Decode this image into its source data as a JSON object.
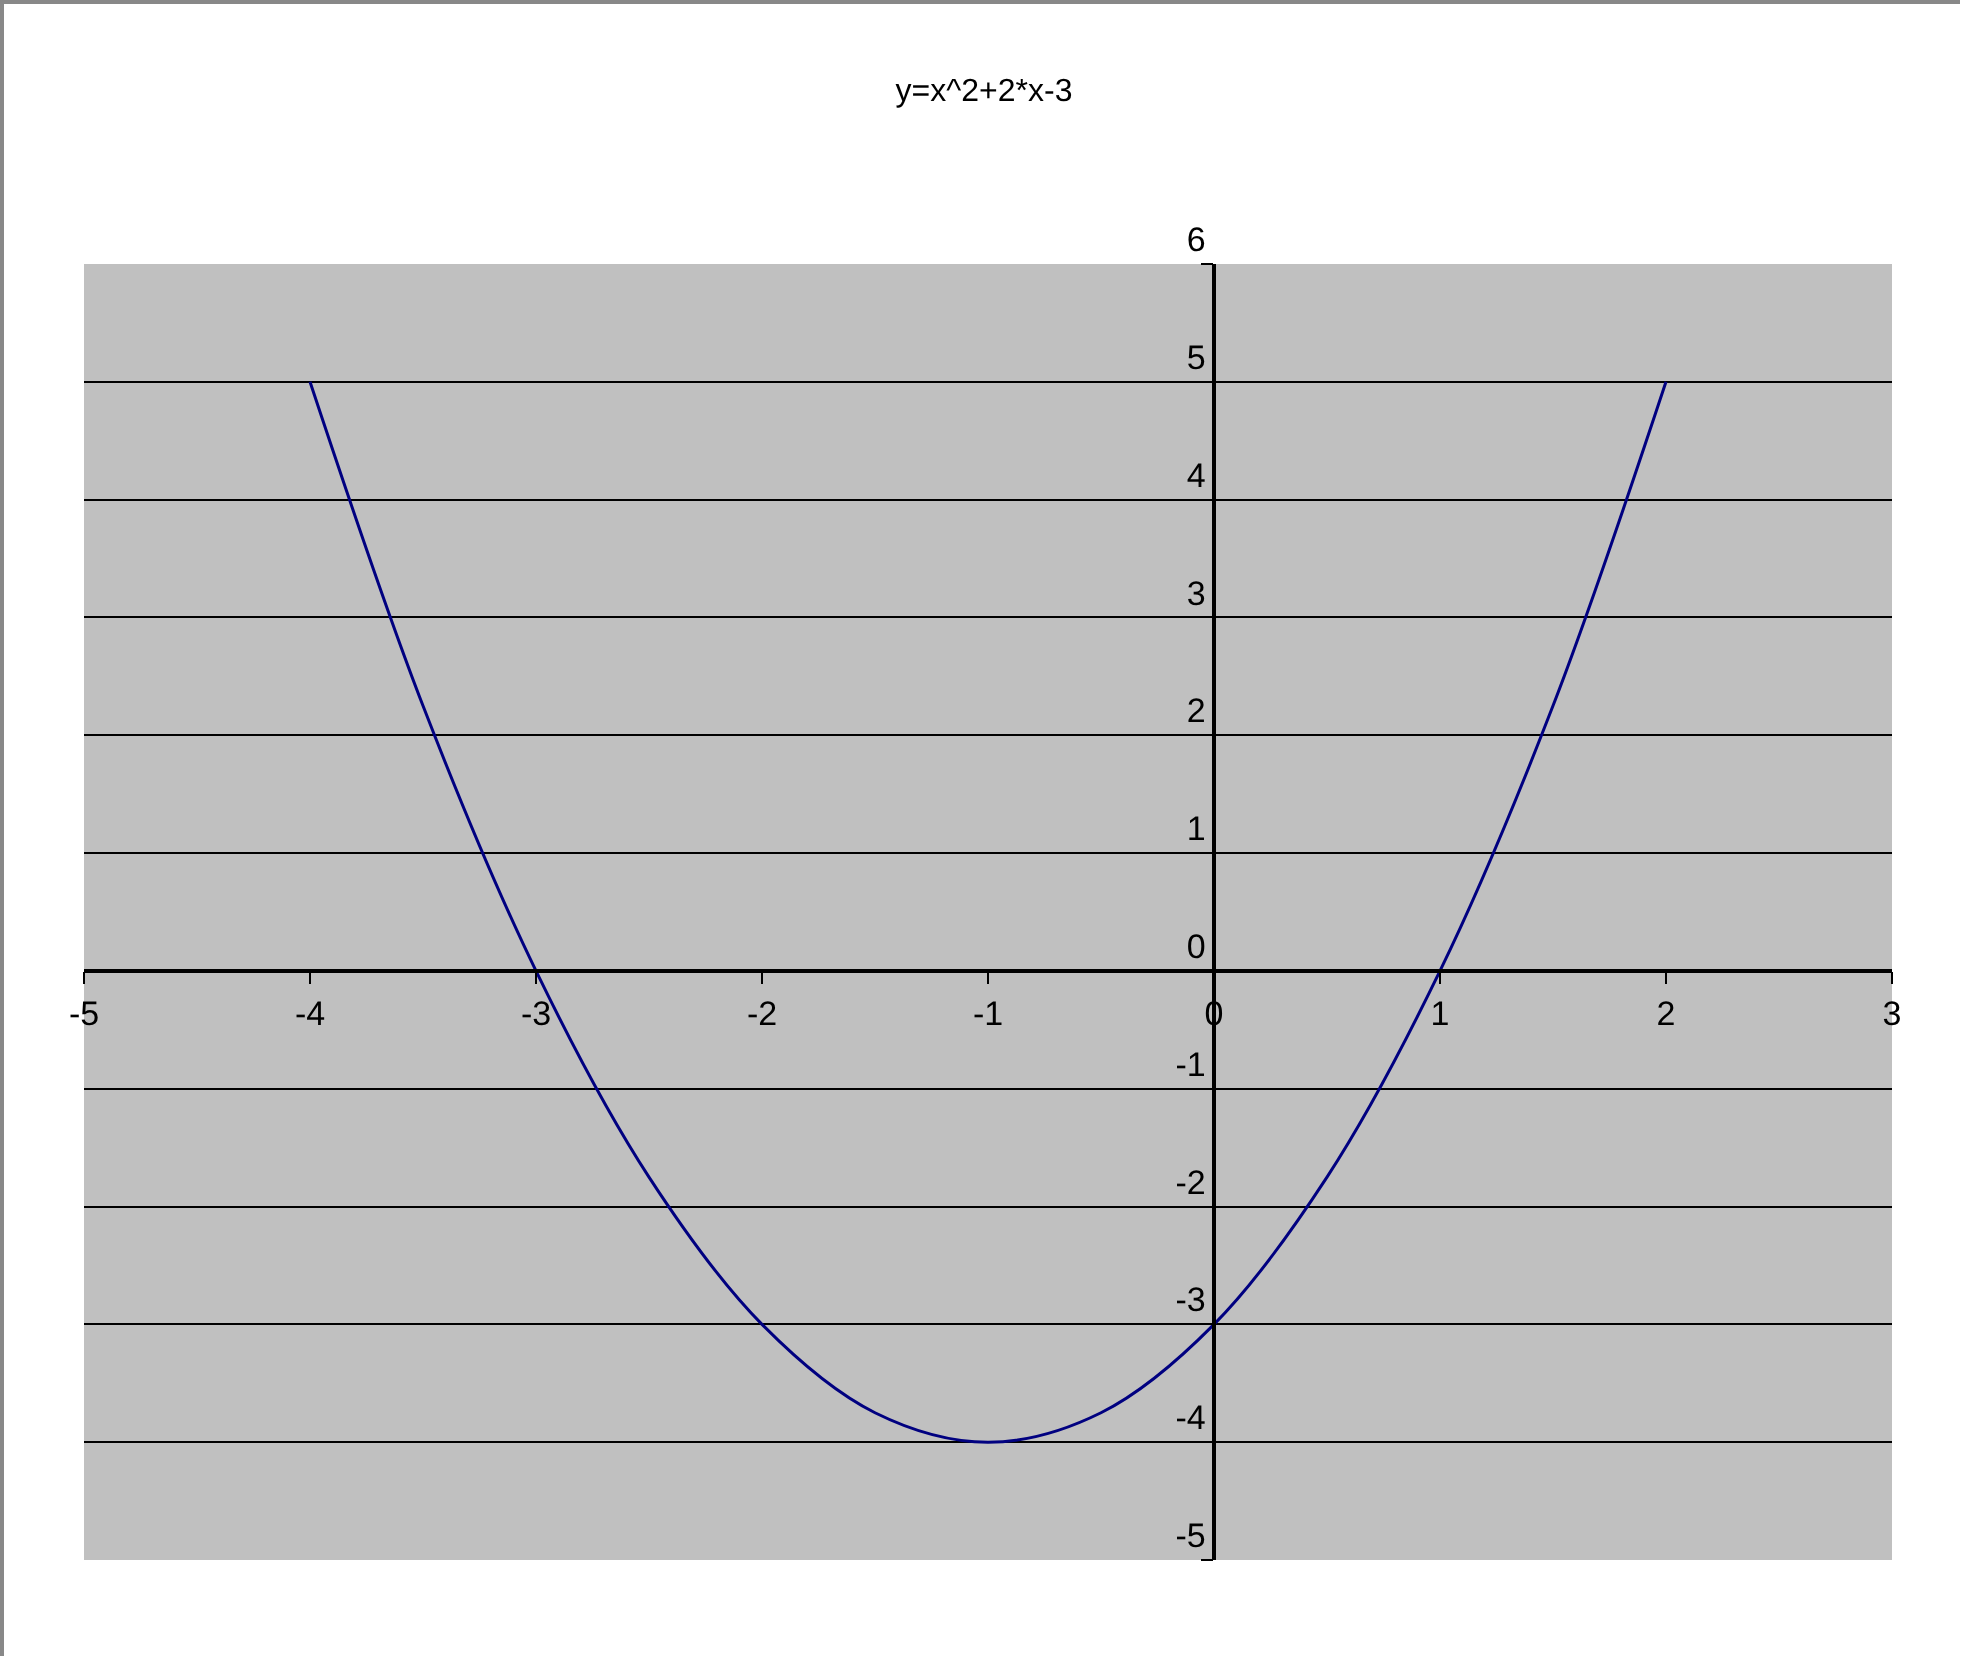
{
  "chart_data": {
    "type": "line",
    "title": "y=x^2+2*x-3",
    "x": [
      -4,
      -3.5,
      -3,
      -2.5,
      -2,
      -1.5,
      -1,
      -0.5,
      0,
      0.5,
      1,
      1.5,
      2
    ],
    "series": [
      {
        "color": "#000080",
        "values": [
          5,
          2.25,
          0,
          -1.75,
          -3,
          -3.75,
          -4,
          -3.75,
          -3,
          -1.75,
          0,
          2.25,
          5
        ]
      }
    ],
    "xlim": [
      -5,
      3
    ],
    "xticks": [
      -5,
      -4,
      -3,
      -2,
      -1,
      0,
      1,
      2,
      3
    ],
    "ylim": [
      -5,
      6
    ],
    "yticks": [
      -5,
      -4,
      -3,
      -2,
      -1,
      0,
      1,
      2,
      3,
      4,
      5,
      6
    ],
    "grid": "y",
    "marker": "none",
    "line_style": "solid"
  }
}
